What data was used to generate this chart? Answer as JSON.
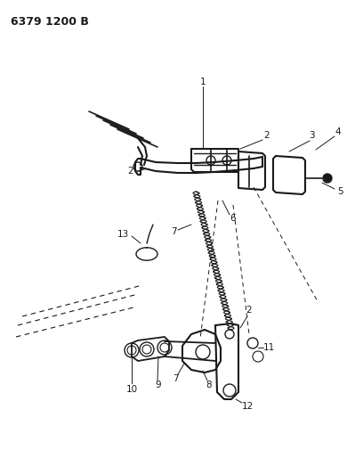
{
  "title": "6379 1200 B",
  "bg_color": "#ffffff",
  "line_color": "#1a1a1a",
  "fig_width": 4.08,
  "fig_height": 5.33,
  "dpi": 100
}
